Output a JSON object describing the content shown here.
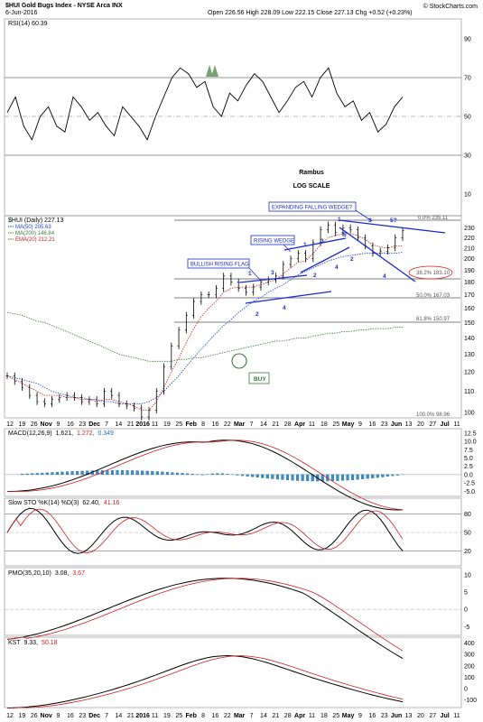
{
  "header": {
    "symbol_line": "$HUI Gold Bugs Index - NYSE Arca INX",
    "date": "6-Jun-2016",
    "ohlc": "Open 226.56 High 228.09 Low 222.15 Close 227.13 Chg +0.52 (+0.23%)",
    "credit": "© StockCharts.com"
  },
  "annotations": {
    "author": "Rambus",
    "scale": "LOG SCALE",
    "expanding": "EXPANDING FALLING WEDGE?",
    "rising": "RISING WEDGE",
    "bullish": "BULLISH RISING FLAG",
    "buy": "BUY"
  },
  "rsi": {
    "label": "RSI(14) 60.39",
    "ticks": [
      "90",
      "70",
      "50",
      "30",
      "10"
    ]
  },
  "price": {
    "label": "$HUI (Daily) 227.13",
    "legend": [
      {
        "text": "MA(50) 205.63",
        "color": "#1f3fd0"
      },
      {
        "text": "MA(200) 146.84",
        "color": "#3b7a3b"
      },
      {
        "text": "EMA(20) 212.21",
        "color": "#d01f1f"
      }
    ],
    "ticks": [
      "230",
      "220",
      "210",
      "200",
      "190",
      "180",
      "170",
      "160",
      "150",
      "140",
      "130",
      "120",
      "110",
      "100"
    ],
    "fib": {
      "f0": "0.0% 235.11",
      "f382": "38.2% 183.10",
      "f50": "50.0% 167.03",
      "f618": "61.8% 150.97",
      "f100": "100.0% 98.96"
    },
    "wave_labels": {
      "flag": [
        "1",
        "3",
        "2",
        "4"
      ],
      "rising": [
        "1",
        "3",
        "5",
        "2",
        "4"
      ],
      "expanding": [
        "1",
        "3",
        "5?",
        "2",
        "4"
      ]
    }
  },
  "x_axis": [
    "12",
    "19",
    "26",
    "Nov",
    "9",
    "16",
    "23",
    "Dec",
    "7",
    "14",
    "21",
    "2016",
    "11",
    "19",
    "25",
    "Feb",
    "8",
    "16",
    "22",
    "Mar",
    "7",
    "14",
    "21",
    "28",
    "Apr",
    "11",
    "18",
    "25",
    "May",
    "9",
    "16",
    "23",
    "Jun",
    "13",
    "20",
    "27",
    "Jul",
    "11"
  ],
  "macd": {
    "label": "MACD(12,26,9)",
    "value1": "1.621,",
    "value2": "1.272,",
    "value3": "0.349",
    "ticks": [
      "12.5",
      "10.0",
      "7.5",
      "5.0",
      "2.5",
      "0.0",
      "-2.5",
      "-5.0"
    ]
  },
  "sto": {
    "label": "Slow STO %K(14) %D(3)",
    "k": "62.40,",
    "d": "41.16",
    "ticks": [
      "80",
      "50",
      "20"
    ]
  },
  "pmo": {
    "label": "PMO(35,20,10)",
    "v1": "3.08,",
    "v2": "3.67",
    "ticks": [
      "10",
      "5",
      "0",
      "-5"
    ]
  },
  "kst": {
    "label": "KST",
    "v1": "9.33,",
    "v2": "50.18",
    "ticks": [
      "400",
      "300",
      "200",
      "100",
      "0",
      "-100"
    ]
  },
  "chart_data": {
    "type": "line",
    "title": "$HUI Gold Bugs Index - NYSE Arca INX",
    "y_scale": "log",
    "ylim": [
      95,
      240
    ],
    "x_range": [
      "Oct 2015",
      "Jul 2016"
    ],
    "series": [
      {
        "name": "$HUI (Daily)",
        "values": [
          118,
          115,
          112,
          108,
          105,
          104,
          106,
          107,
          108,
          107,
          105,
          106,
          104,
          110,
          108,
          104,
          103,
          102,
          98,
          101,
          110,
          123,
          135,
          145,
          155,
          165,
          170,
          170,
          175,
          185,
          180,
          175,
          172,
          176,
          180,
          182,
          185,
          195,
          200,
          205,
          200,
          215,
          228,
          233,
          225,
          230,
          228,
          220,
          212,
          205,
          207,
          210,
          220,
          227
        ]
      },
      {
        "name": "MA(50)",
        "values": [
          118,
          117,
          116,
          115,
          114,
          112,
          110,
          109,
          108,
          107,
          107,
          106,
          106,
          105,
          105,
          104,
          104,
          104,
          104,
          105,
          107,
          110,
          114,
          118,
          123,
          128,
          133,
          138,
          143,
          148,
          152,
          157,
          161,
          165,
          168,
          172,
          175,
          178,
          182,
          186,
          189,
          192,
          195,
          198,
          200,
          202,
          203,
          204,
          205,
          205,
          205,
          205,
          205,
          206
        ]
      },
      {
        "name": "MA(200)",
        "values": [
          157,
          156,
          155,
          153,
          151,
          150,
          148,
          146,
          144,
          142,
          140,
          138,
          136,
          134,
          132,
          130,
          129,
          128,
          127,
          126,
          126,
          126,
          126,
          127,
          127,
          128,
          128,
          129,
          130,
          131,
          132,
          133,
          134,
          135,
          136,
          137,
          138,
          138,
          139,
          140,
          140,
          141,
          142,
          143,
          143,
          144,
          144,
          145,
          145,
          146,
          146,
          146,
          147,
          147
        ]
      },
      {
        "name": "EMA(20)",
        "values": [
          118,
          116,
          114,
          112,
          110,
          108,
          108,
          108,
          107,
          107,
          106,
          106,
          105,
          106,
          106,
          105,
          104,
          103,
          101,
          101,
          105,
          112,
          120,
          128,
          137,
          146,
          154,
          160,
          165,
          172,
          175,
          176,
          176,
          176,
          178,
          180,
          182,
          187,
          192,
          197,
          198,
          205,
          213,
          220,
          222,
          224,
          224,
          222,
          218,
          213,
          211,
          210,
          212,
          212
        ]
      }
    ],
    "rsi_values": [
      52,
      60,
      45,
      38,
      50,
      55,
      45,
      42,
      60,
      55,
      48,
      52,
      45,
      40,
      55,
      50,
      45,
      38,
      50,
      60,
      70,
      75,
      72,
      65,
      68,
      55,
      50,
      62,
      58,
      66,
      72,
      68,
      60,
      52,
      58,
      65,
      68,
      60,
      70,
      75,
      62,
      55,
      58,
      48,
      52,
      42,
      46,
      55,
      60
    ]
  }
}
